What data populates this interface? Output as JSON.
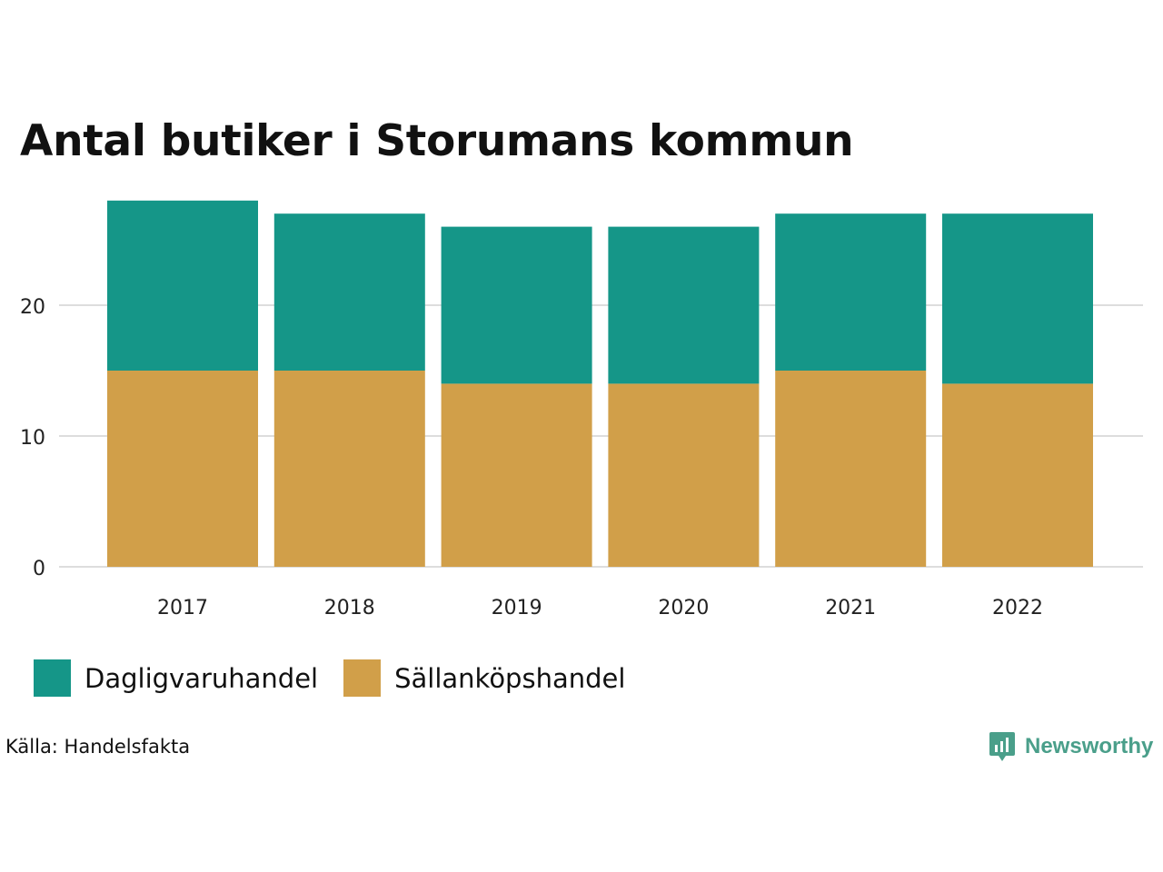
{
  "title": "Antal butiker i Storumans kommun",
  "chart_data": {
    "type": "bar",
    "stacked": true,
    "title": "Antal butiker i Storumans kommun",
    "categories": [
      "2017",
      "2018",
      "2019",
      "2020",
      "2021",
      "2022"
    ],
    "series": [
      {
        "name": "Sällanköpshandel",
        "color": "#d19f49",
        "values": [
          15,
          15,
          14,
          14,
          15,
          14
        ]
      },
      {
        "name": "Dagligvaruhandel",
        "color": "#159688",
        "values": [
          13,
          12,
          12,
          12,
          12,
          13
        ]
      }
    ],
    "yticks": [
      0,
      10,
      20
    ],
    "ylim": [
      0,
      28
    ],
    "xlabel": "",
    "ylabel": "",
    "grid": true,
    "legend_position": "bottom"
  },
  "legend": [
    {
      "label": "Dagligvaruhandel",
      "color": "#159688"
    },
    {
      "label": "Sällanköpshandel",
      "color": "#d19f49"
    }
  ],
  "source": "Källa: Handelsfakta",
  "brand": {
    "name": "Newsworthy",
    "logo_icon": "newsworthy-logo-icon",
    "color": "#4a9f8a"
  }
}
